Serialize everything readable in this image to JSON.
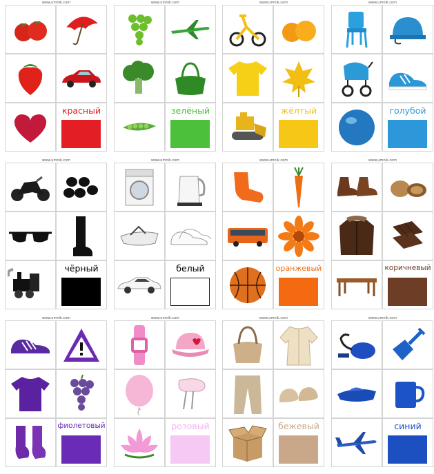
{
  "site_watermark": "www.umnik.com",
  "cards": [
    {
      "color_name": "красный",
      "swatch": "#e41e25",
      "text": "#e41e25",
      "items": [
        "tomato-icon",
        "umbrella-icon",
        "strawberry-icon",
        "car-icon",
        "heart-icon"
      ]
    },
    {
      "color_name": "зелёный",
      "swatch": "#4cbf3b",
      "text": "#4cbf3b",
      "items": [
        "grapes-icon",
        "airplane-icon",
        "broccoli-icon",
        "handbag-icon",
        "peas-icon"
      ]
    },
    {
      "color_name": "жёлтый",
      "swatch": "#f6c716",
      "text": "#f2c318",
      "items": [
        "tricycle-icon",
        "orange-icon",
        "tshirt-icon",
        "leaf-icon",
        "bulldozer-icon"
      ]
    },
    {
      "color_name": "голубой",
      "swatch": "#2c98da",
      "text": "#2c98da",
      "items": [
        "chair-icon",
        "helmet-icon",
        "stroller-icon",
        "sneaker-icon",
        "ball-icon"
      ]
    },
    {
      "color_name": "чёрный",
      "swatch": "#000000",
      "text": "#000000",
      "items": [
        "motorcycle-icon",
        "olives-icon",
        "sunglasses-icon",
        "boot-icon",
        "locomotive-icon"
      ]
    },
    {
      "color_name": "белый",
      "swatch": "#ffffff",
      "text": "#000000",
      "items": [
        "washing-machine-icon",
        "kettle-icon",
        "boat-icon",
        "sneakers-icon",
        "sports-car-icon"
      ]
    },
    {
      "color_name": "оранжевый",
      "swatch": "#f46a11",
      "text": "#f46a11",
      "items": [
        "sock-icon",
        "carrot-icon",
        "bus-icon",
        "flower-icon",
        "basketball-icon"
      ]
    },
    {
      "color_name": "коричневый",
      "swatch": "#6e3d26",
      "text": "#6e3d26",
      "items": [
        "shoes-icon",
        "walnut-icon",
        "jacket-icon",
        "chocolate-icon",
        "table-icon"
      ]
    },
    {
      "color_name": "фиолетовый",
      "swatch": "#6a2cb4",
      "text": "#6a2cb4",
      "items": [
        "sneaker-icon",
        "warning-sign-icon",
        "tshirt-icon",
        "grapes-icon",
        "socks-icon"
      ]
    },
    {
      "color_name": "розовый",
      "swatch": "#f6c8f4",
      "text": "#f2b2f0",
      "items": [
        "watch-icon",
        "cap-icon",
        "balloon-icon",
        "mixer-icon",
        "lotus-icon"
      ]
    },
    {
      "color_name": "бежевый",
      "swatch": "#c8a888",
      "text": "#c8a888",
      "items": [
        "bag-icon",
        "robe-icon",
        "trousers-icon",
        "clogs-icon",
        "box-icon"
      ]
    },
    {
      "color_name": "синий",
      "swatch": "#1c4fbf",
      "text": "#1c4fbf",
      "items": [
        "vacuum-icon",
        "shovel-icon",
        "boat-icon",
        "mug-icon",
        "airplane-icon"
      ]
    }
  ]
}
